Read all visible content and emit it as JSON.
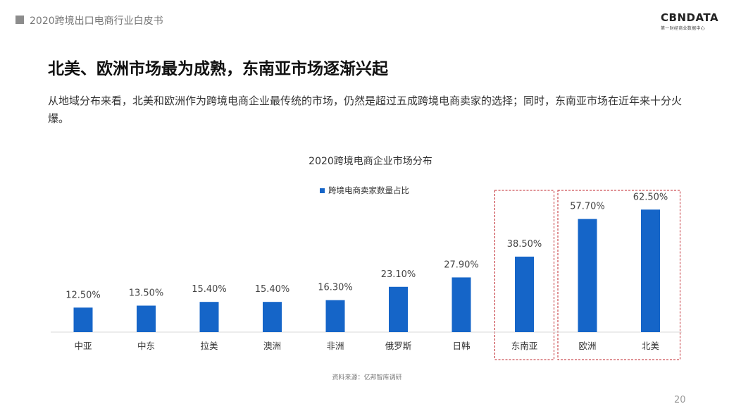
{
  "header": {
    "report_title": "2020跨境出口电商行业白皮书",
    "logo_text": "CBNDATA",
    "logo_subtitle": "第一财经商业数据中心"
  },
  "slide": {
    "title": "北美、欧洲市场最为成熟，东南亚市场逐渐兴起",
    "lead": "从地域分布来看，北美和欧洲作为跨境电商企业最传统的市场，仍然是超过五成跨境电商卖家的选择；同时，东南亚市场在近年来十分火爆。"
  },
  "chart_data": {
    "type": "bar",
    "title": "2020跨境电商企业市场分布",
    "categories": [
      "中亚",
      "中东",
      "拉美",
      "澳洲",
      "非洲",
      "俄罗斯",
      "日韩",
      "东南亚",
      "欧洲",
      "北美"
    ],
    "series": [
      {
        "name": "跨境电商卖家数量占比",
        "values": [
          12.5,
          13.5,
          15.4,
          15.4,
          16.3,
          23.1,
          27.9,
          38.5,
          57.7,
          62.5
        ],
        "labels": [
          "12.50%",
          "13.50%",
          "15.40%",
          "15.40%",
          "16.30%",
          "23.10%",
          "27.90%",
          "38.50%",
          "57.70%",
          "62.50%"
        ]
      }
    ],
    "ylim": [
      0,
      65
    ],
    "grid": false,
    "legend_position": "top",
    "highlighted_groups": [
      [
        "东南亚"
      ],
      [
        "欧洲",
        "北美"
      ]
    ],
    "bar_color": "#1565c8",
    "highlight_color": "#c0272d"
  },
  "footer": {
    "source": "资料来源：亿邦智库调研",
    "page_number": "20"
  }
}
